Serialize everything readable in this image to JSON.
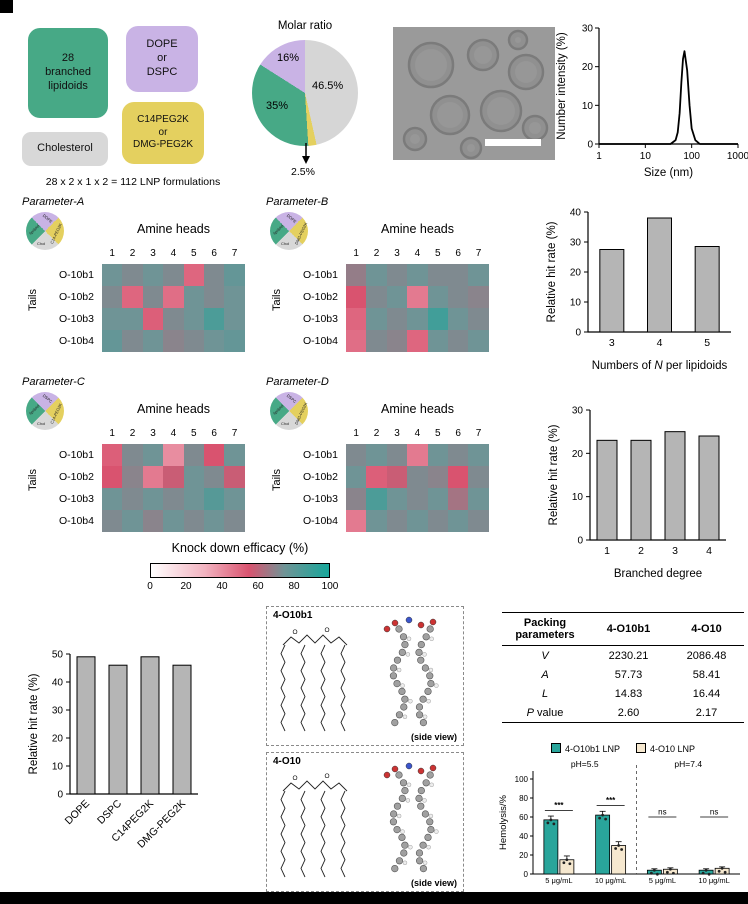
{
  "schematic": {
    "lipidoids": "28\nbranched\nlipidoids",
    "helper": "DOPE\nor\nDSPC",
    "peg": "C14PEG2K\nor\nDMG-PEG2K",
    "cholesterol": "Cholesterol",
    "formula": "28 x 2 x 1 x 2 = 112 LNP formulations",
    "colors": {
      "lipidoids": "#47a986",
      "helper": "#c9b3e5",
      "peg": "#e4d05f",
      "cholesterol": "#d8d8d8"
    }
  },
  "molar_pie": {
    "title": "Molar ratio",
    "slices": [
      {
        "label": "46.5%",
        "value": 46.5,
        "color": "#d6d6d6"
      },
      {
        "label": "2.5%",
        "value": 2.5,
        "color": "#e4d05f"
      },
      {
        "label": "35%",
        "value": 35,
        "color": "#47a986"
      },
      {
        "label": "16%",
        "value": 16,
        "color": "#c9b3e5"
      }
    ]
  },
  "colorbar": {
    "label": "Knock down efficacy (%)",
    "ticks": [
      0,
      20,
      40,
      60,
      80,
      100
    ],
    "stops": [
      [
        0,
        "#ffffff"
      ],
      [
        30,
        "#f2b4c1"
      ],
      [
        55,
        "#d9536f"
      ],
      [
        75,
        "#6f9496"
      ],
      [
        100,
        "#17a79b"
      ]
    ]
  },
  "structures": [
    {
      "label": "4-O10b1",
      "caption": "(side view)"
    },
    {
      "label": "4-O10",
      "caption": "(side view)"
    }
  ],
  "packing_table": {
    "headers": [
      "Packing parameters",
      "4-O10b1",
      "4-O10"
    ],
    "rows": [
      [
        "V",
        "2230.21",
        "2086.48"
      ],
      [
        "A",
        "57.73",
        "58.41"
      ],
      [
        "L",
        "14.83",
        "16.44"
      ],
      [
        "P value",
        "2.60",
        "2.17"
      ]
    ]
  },
  "chart_data": [
    {
      "id": "size_distribution",
      "type": "line",
      "xlabel": "Size (nm)",
      "ylabel": "Number intensity (%)",
      "xscale": "log",
      "xlim": [
        1,
        1000
      ],
      "ylim": [
        0,
        30
      ],
      "xticks": [
        1,
        10,
        100,
        1000
      ],
      "yticks": [
        0,
        10,
        20,
        30
      ],
      "x": [
        1,
        20,
        35,
        45,
        50,
        55,
        60,
        65,
        70,
        80,
        90,
        100,
        120,
        150,
        300,
        1000
      ],
      "y": [
        0,
        0,
        0,
        1,
        3,
        8,
        16,
        22,
        24,
        19,
        10,
        4,
        1,
        0,
        0,
        0
      ]
    },
    {
      "id": "heatmap_A",
      "type": "heatmap",
      "title": "Parameter-A",
      "xlabel": "Amine heads",
      "ylabel": "Tails",
      "columns": [
        "1",
        "2",
        "3",
        "4",
        "5",
        "6",
        "7"
      ],
      "rows": [
        "O-10b1",
        "O-10b2",
        "O-10b3",
        "O-10b4"
      ],
      "values": [
        [
          75,
          72,
          75,
          72,
          50,
          72,
          78
        ],
        [
          72,
          50,
          72,
          48,
          75,
          72,
          75
        ],
        [
          75,
          75,
          52,
          72,
          75,
          85,
          75
        ],
        [
          78,
          72,
          75,
          70,
          72,
          75,
          78
        ]
      ],
      "composition_pie": {
        "left": "lipidoid",
        "top": "DOPE",
        "right": "C14-PEG2K",
        "bottom": "Chol"
      }
    },
    {
      "id": "heatmap_B",
      "type": "heatmap",
      "title": "Parameter-B",
      "xlabel": "Amine heads",
      "ylabel": "Tails",
      "columns": [
        "1",
        "2",
        "3",
        "4",
        "5",
        "6",
        "7"
      ],
      "rows": [
        "O-10b1",
        "O-10b2",
        "O-10b3",
        "O-10b4"
      ],
      "values": [
        [
          68,
          75,
          72,
          75,
          72,
          72,
          75
        ],
        [
          55,
          72,
          75,
          45,
          75,
          72,
          70
        ],
        [
          50,
          75,
          72,
          75,
          88,
          75,
          72
        ],
        [
          48,
          72,
          70,
          50,
          75,
          72,
          75
        ]
      ],
      "composition_pie": {
        "left": "lipidoid",
        "top": "DOPE",
        "right": "DMG-PEG2K",
        "bottom": "Chol"
      }
    },
    {
      "id": "heatmap_C",
      "type": "heatmap",
      "title": "Parameter-C",
      "xlabel": "Amine heads",
      "ylabel": "Tails",
      "columns": [
        "1",
        "2",
        "3",
        "4",
        "5",
        "6",
        "7"
      ],
      "rows": [
        "O-10b1",
        "O-10b2",
        "O-10b3",
        "O-10b4"
      ],
      "values": [
        [
          52,
          72,
          75,
          40,
          72,
          55,
          75
        ],
        [
          55,
          70,
          45,
          58,
          75,
          72,
          58
        ],
        [
          75,
          72,
          75,
          72,
          75,
          82,
          75
        ],
        [
          72,
          75,
          70,
          75,
          72,
          75,
          72
        ]
      ],
      "composition_pie": {
        "left": "lipidoid",
        "top": "DSPC",
        "right": "C14-PEG2K",
        "bottom": "Chol"
      }
    },
    {
      "id": "heatmap_D",
      "type": "heatmap",
      "title": "Parameter-D",
      "xlabel": "Amine heads",
      "ylabel": "Tails",
      "columns": [
        "1",
        "2",
        "3",
        "4",
        "5",
        "6",
        "7"
      ],
      "rows": [
        "O-10b1",
        "O-10b2",
        "O-10b3",
        "O-10b4"
      ],
      "values": [
        [
          72,
          75,
          72,
          45,
          75,
          72,
          75
        ],
        [
          75,
          52,
          58,
          72,
          70,
          55,
          72
        ],
        [
          70,
          85,
          75,
          72,
          75,
          65,
          75
        ],
        [
          45,
          75,
          72,
          75,
          72,
          75,
          72
        ]
      ],
      "composition_pie": {
        "left": "lipidoid",
        "top": "DSPC",
        "right": "DMG-PEG2K",
        "bottom": "Chol"
      }
    },
    {
      "id": "hit_rate_by_N",
      "type": "bar",
      "categories": [
        "3",
        "4",
        "5"
      ],
      "values": [
        27.5,
        38,
        28.5
      ],
      "ylabel": "Relative hit rate (%)",
      "xlabel_parts": [
        {
          "t": "Numbers of ",
          "i": false
        },
        {
          "t": "N",
          "i": true
        },
        {
          "t": " per lipidoids",
          "i": false
        }
      ],
      "ylim": [
        0,
        40
      ],
      "yticks": [
        0,
        10,
        20,
        30,
        40
      ]
    },
    {
      "id": "hit_rate_by_branched_degree",
      "type": "bar",
      "categories": [
        "1",
        "2",
        "3",
        "4"
      ],
      "values": [
        23,
        23,
        25,
        24
      ],
      "ylabel": "Relative hit rate (%)",
      "xlabel": "Branched degree",
      "ylim": [
        0,
        30
      ],
      "yticks": [
        0,
        10,
        20,
        30
      ]
    },
    {
      "id": "hit_rate_by_helper_lipid",
      "type": "bar",
      "categories": [
        "DOPE",
        "DSPC",
        "C14PEG2K",
        "DMG-PEG2K"
      ],
      "values": [
        49,
        46,
        49,
        46
      ],
      "ylabel": "Relative hit rate (%)",
      "ylim": [
        0,
        50
      ],
      "yticks": [
        0,
        10,
        20,
        30,
        40,
        50
      ]
    },
    {
      "id": "hemolysis",
      "type": "bar",
      "ylabel": "Hemolysis/%",
      "ylim": [
        0,
        100
      ],
      "yticks": [
        0,
        20,
        40,
        60,
        80,
        100
      ],
      "groups": [
        "5 μg/mL",
        "10 μg/mL",
        "5 μg/mL",
        "10 μg/mL"
      ],
      "region_labels": [
        "pH=5.5",
        "pH=7.4"
      ],
      "significance": [
        "***",
        "***",
        "ns",
        "ns"
      ],
      "series": [
        {
          "name": "4-O10b1 LNP",
          "color": "#29a59b",
          "values": [
            57,
            62,
            4,
            4
          ]
        },
        {
          "name": "4-O10 LNP",
          "color": "#f6e8cf",
          "values": [
            15,
            30,
            5,
            6
          ]
        }
      ]
    }
  ]
}
